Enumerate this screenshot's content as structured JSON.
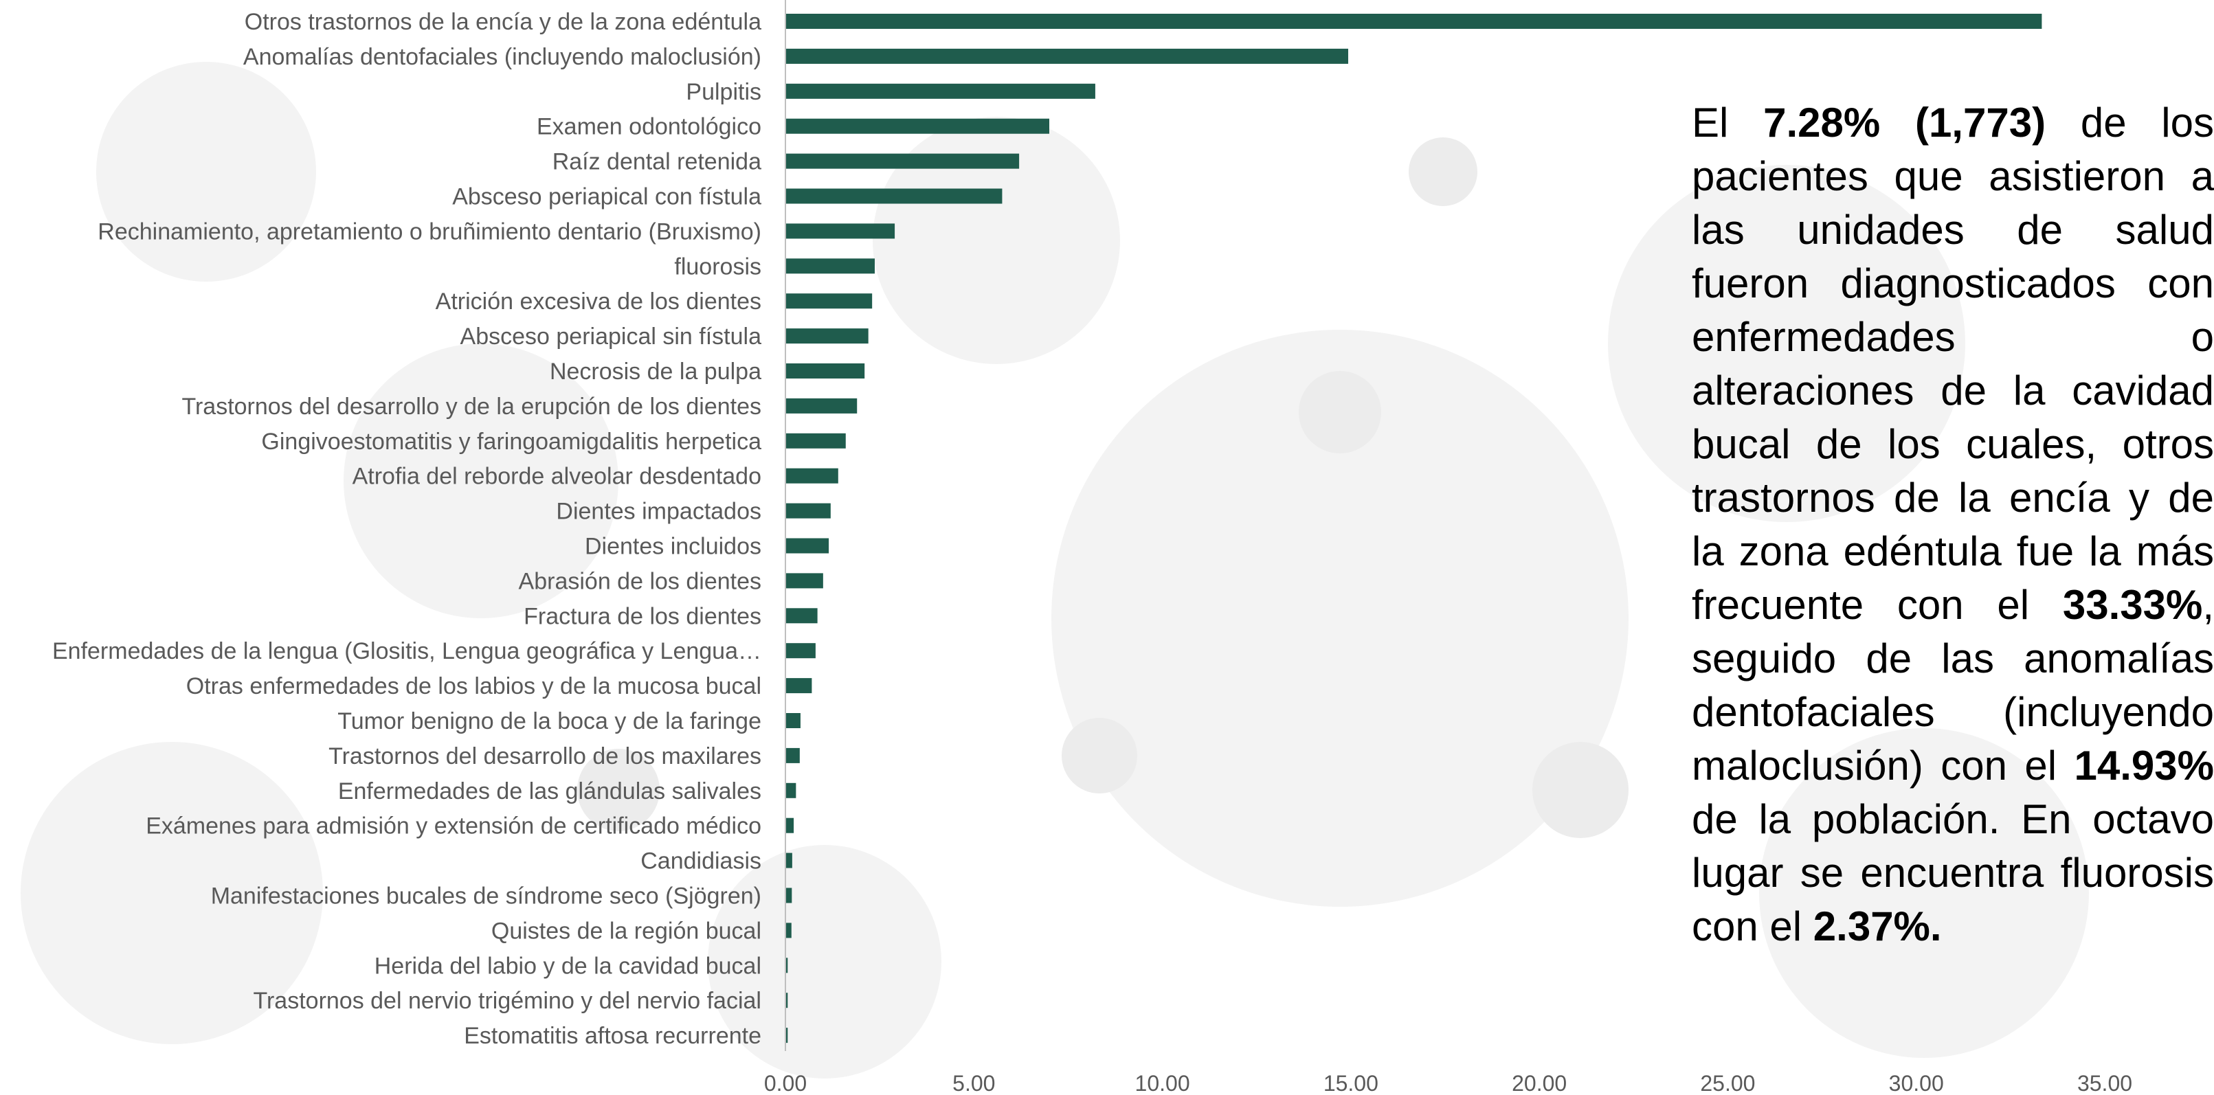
{
  "chart_data": {
    "type": "bar",
    "orientation": "horizontal",
    "categories": [
      "Otros trastornos de la encía y de la zona edéntula",
      "Anomalías dentofaciales (incluyendo maloclusión)",
      "Pulpitis",
      "Examen odontológico",
      "Raíz dental retenida",
      "Absceso periapical con fístula",
      "Rechinamiento, apretamiento o bruñimiento dentario (Bruxismo)",
      "fluorosis",
      "Atrición excesiva de los dientes",
      "Absceso periapical sin fístula",
      "Necrosis de la pulpa",
      "Trastornos del desarrollo y de la erupción de los dientes",
      "Gingivoestomatitis y faringoamigdalitis herpetica",
      "Atrofia del reborde alveolar desdentado",
      "Dientes impactados",
      "Dientes incluidos",
      "Abrasión de los dientes",
      "Fractura de los dientes",
      "Enfermedades de la lengua (Glositis, Lengua geográfica y Lengua…",
      "Otras enfermedades de los labios y de la mucosa bucal",
      "Tumor benigno de la boca y de la faringe",
      "Trastornos del desarrollo de los maxilares",
      "Enfermedades de las glándulas salivales",
      "Exámenes para admisión y extensión de certificado médico",
      "Candidiasis",
      "Manifestaciones bucales de síndrome seco (Sjögren)",
      "Quistes de la región bucal",
      "Herida del labio y de la cavidad bucal",
      "Trastornos del nervio trigémino y del nervio facial",
      "Estomatitis aftosa recurrente"
    ],
    "values": [
      33.33,
      14.93,
      8.22,
      7.0,
      6.2,
      5.75,
      2.9,
      2.37,
      2.3,
      2.2,
      2.1,
      1.9,
      1.6,
      1.4,
      1.2,
      1.15,
      1.0,
      0.85,
      0.8,
      0.7,
      0.4,
      0.38,
      0.28,
      0.22,
      0.18,
      0.17,
      0.16,
      0.06,
      0.06,
      0.06
    ],
    "xlim": [
      0,
      35
    ],
    "ticks": [
      "0.00",
      "5.00",
      "10.00",
      "15.00",
      "20.00",
      "25.00",
      "30.00",
      "35.00"
    ],
    "tick_values": [
      0,
      5,
      10,
      15,
      20,
      25,
      30,
      35
    ],
    "bar_color": "#1f5c4d",
    "grid": false,
    "legend": "none"
  },
  "summary": {
    "t1": "El ",
    "b1": "7.28% (1,773)",
    "t2": " de los pacientes que asistieron a las unidades de salud fueron diagnosticados con enfermedades o alteraciones de la cavidad bucal de los cuales, otros trastornos de la encía y de la zona edéntula fue la más frecuente con el ",
    "b2": "33.33%",
    "t3": ", seguido de las anomalías dentofaciales (incluyendo maloclusión) con el ",
    "b3": "14.93%",
    "t4": " de la población. En octavo lugar se encuentra fluorosis con el ",
    "b4": "2.37%."
  }
}
